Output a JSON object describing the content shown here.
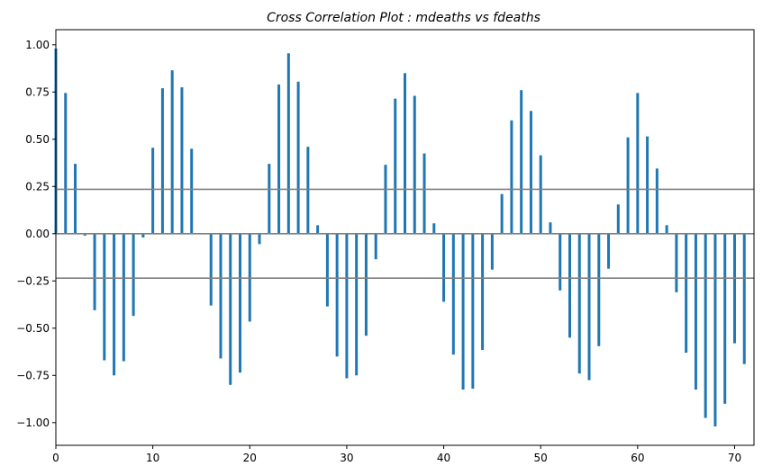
{
  "chart_data": {
    "type": "bar",
    "title": "Cross Correlation Plot : mdeaths vs fdeaths",
    "xlabel": "",
    "ylabel": "",
    "xlim": [
      0,
      72
    ],
    "ylim": [
      -1.12,
      1.08
    ],
    "xticks": [
      0,
      10,
      20,
      30,
      40,
      50,
      60,
      70
    ],
    "xtick_labels": [
      "0",
      "10",
      "20",
      "30",
      "40",
      "50",
      "60",
      "70"
    ],
    "yticks": [
      1.0,
      0.75,
      0.5,
      0.25,
      0.0,
      -0.25,
      -0.5,
      -0.75,
      -1.0
    ],
    "ytick_labels": [
      "1.00",
      "0.75",
      "0.50",
      "0.25",
      "0.00",
      "−0.25",
      "−0.50",
      "−0.75",
      "−1.00"
    ],
    "confidence_lines": [
      0.235,
      0.0,
      -0.235
    ],
    "grid": false,
    "bar_color": "#1f77b4",
    "line_color": "#808080",
    "x": [
      0,
      1,
      2,
      3,
      4,
      5,
      6,
      7,
      8,
      9,
      10,
      11,
      12,
      13,
      14,
      15,
      16,
      17,
      18,
      19,
      20,
      21,
      22,
      23,
      24,
      25,
      26,
      27,
      28,
      29,
      30,
      31,
      32,
      33,
      34,
      35,
      36,
      37,
      38,
      39,
      40,
      41,
      42,
      43,
      44,
      45,
      46,
      47,
      48,
      49,
      50,
      51,
      52,
      53,
      54,
      55,
      56,
      57,
      58,
      59,
      60,
      61,
      62,
      63,
      64,
      65,
      66,
      67,
      68,
      69,
      70,
      71
    ],
    "values": [
      0.98,
      0.745,
      0.37,
      -0.01,
      -0.405,
      -0.67,
      -0.75,
      -0.675,
      -0.435,
      -0.02,
      0.455,
      0.77,
      0.865,
      0.775,
      0.45,
      0.0,
      -0.38,
      -0.66,
      -0.8,
      -0.735,
      -0.465,
      -0.055,
      0.37,
      0.79,
      0.955,
      0.805,
      0.46,
      0.045,
      -0.385,
      -0.65,
      -0.765,
      -0.75,
      -0.54,
      -0.135,
      0.365,
      0.715,
      0.85,
      0.73,
      0.425,
      0.055,
      -0.36,
      -0.64,
      -0.825,
      -0.82,
      -0.615,
      -0.19,
      0.21,
      0.6,
      0.76,
      0.65,
      0.415,
      0.06,
      -0.3,
      -0.55,
      -0.74,
      -0.775,
      -0.595,
      -0.185,
      0.155,
      0.51,
      0.745,
      0.515,
      0.345,
      0.045,
      -0.31,
      -0.63,
      -0.825,
      -0.975,
      -1.02,
      -0.9,
      -0.58,
      -0.69
    ]
  }
}
